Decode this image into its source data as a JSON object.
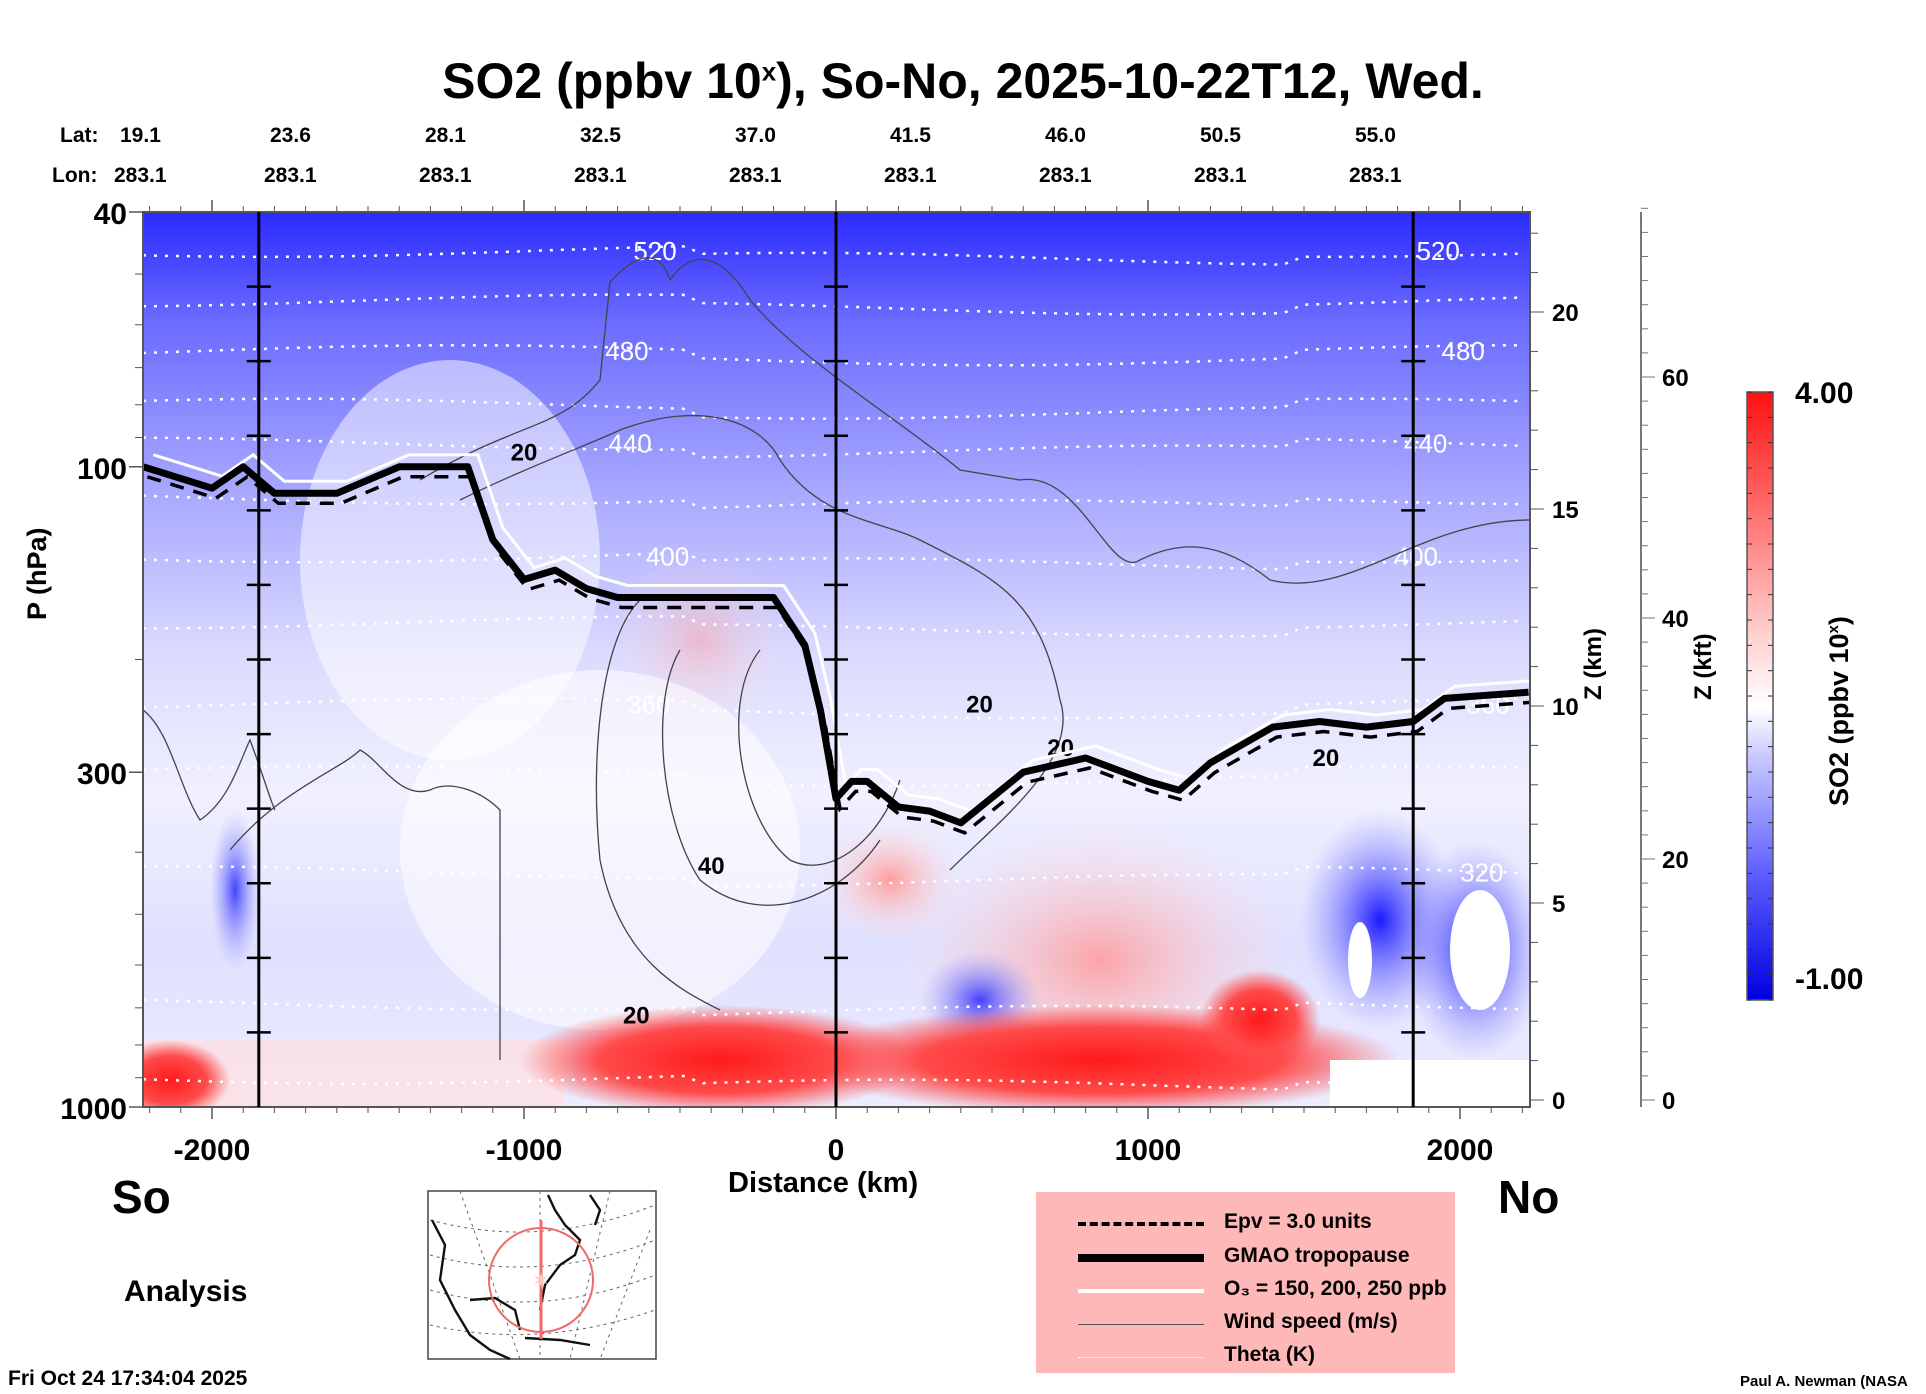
{
  "title": {
    "prefix": "SO2 (ppbv 10",
    "superscript": "x",
    "suffix": "), So-No, 2025-10-22T12, Wed."
  },
  "latlon": {
    "lat_label": "Lat:",
    "lon_label": "Lon:",
    "lats": [
      "19.1",
      "23.6",
      "28.1",
      "32.5",
      "37.0",
      "41.5",
      "46.0",
      "50.5",
      "55.0"
    ],
    "lons": [
      "283.1",
      "283.1",
      "283.1",
      "283.1",
      "283.1",
      "283.1",
      "283.1",
      "283.1",
      "283.1"
    ]
  },
  "labels": {
    "south": "So",
    "north": "No",
    "analysis": "Analysis",
    "timestamp": "Fri Oct 24 17:34:04 2025",
    "credit": "Paul A. Newman (NASA"
  },
  "legend": {
    "items": [
      {
        "style": "dashed",
        "label": "Epv = 3.0 units"
      },
      {
        "style": "thick-solid",
        "label": "GMAO tropopause"
      },
      {
        "style": "white-solid",
        "label": "O₃ = 150, 200, 250 ppb"
      },
      {
        "style": "thin-solid",
        "label": "Wind speed (m/s)"
      },
      {
        "style": "dotted-white",
        "label": "Theta (K)"
      }
    ]
  },
  "colors": {
    "legend_bg": "#ffb8b8",
    "cmap_low": "#0000e6",
    "cmap_mid": "#ffffff",
    "cmap_high": "#ff1010",
    "map_track": "#f06a6a"
  },
  "chart_data": {
    "type": "heatmap",
    "title": "SO2 (ppbv 10^x), So-No, 2025-10-22T12, Wed.",
    "xlabel": "Distance (km)",
    "ylabel": "P (hPa)",
    "y2label": "Z (km)",
    "y3label": "Z (kft)",
    "colorbar_label": "SO2 (ppbv 10^x)",
    "xlim": [
      -2220,
      2220
    ],
    "ylim_hpa": [
      1000,
      40
    ],
    "yscale": "log",
    "x_ticks": [
      -2000,
      -1000,
      0,
      1000,
      2000
    ],
    "x_tick_labels": [
      "-2000",
      "-1000",
      "0",
      "1000",
      "2000"
    ],
    "y_ticks_hpa": [
      40,
      100,
      300,
      1000
    ],
    "y_tick_labels": [
      "40",
      "100",
      "300",
      "1000"
    ],
    "zkm_ticks": [
      0,
      5,
      10,
      15,
      20
    ],
    "zkft_ticks": [
      0,
      20,
      40,
      60
    ],
    "colorbar": {
      "min": -1.0,
      "max": 4.0,
      "min_label": "-1.00",
      "max_label": "4.00"
    },
    "vertical_markers_km": [
      -1850,
      0,
      1850
    ],
    "theta_levels": [
      {
        "value": "520",
        "label_positions_km": [
          -580,
          1930
        ]
      },
      {
        "value": "480",
        "label_positions_km": [
          -670,
          2010
        ]
      },
      {
        "value": "440",
        "label_positions_km": [
          -660,
          1890
        ]
      },
      {
        "value": "400",
        "label_positions_km": [
          -540,
          1860
        ]
      },
      {
        "value": "360",
        "label_positions_km": [
          -600,
          2090
        ]
      },
      {
        "value": "320",
        "label_positions_km": [
          2070
        ]
      }
    ],
    "wind_labels": [
      {
        "value": "20",
        "x_km": -1000,
        "p_hpa": 95
      },
      {
        "value": "40",
        "x_km": -400,
        "p_hpa": 420
      },
      {
        "value": "20",
        "x_km": -640,
        "p_hpa": 720
      },
      {
        "value": "20",
        "x_km": 460,
        "p_hpa": 235
      },
      {
        "value": "20",
        "x_km": 720,
        "p_hpa": 275
      },
      {
        "value": "20",
        "x_km": 1570,
        "p_hpa": 285
      }
    ],
    "tropopause_hpa": {
      "x_km": [
        -2220,
        -2000,
        -1900,
        -1800,
        -1600,
        -1400,
        -1250,
        -1180,
        -1100,
        -1000,
        -900,
        -800,
        -700,
        -400,
        -200,
        -100,
        -50,
        0,
        50,
        100,
        200,
        300,
        400,
        600,
        800,
        1000,
        1100,
        1200,
        1400,
        1550,
        1700,
        1850,
        1950,
        2220
      ],
      "p_hpa": [
        100,
        108,
        100,
        110,
        110,
        100,
        100,
        100,
        130,
        150,
        145,
        155,
        160,
        160,
        160,
        190,
        240,
        330,
        310,
        310,
        340,
        345,
        360,
        300,
        285,
        310,
        320,
        290,
        255,
        250,
        255,
        250,
        230,
        225
      ]
    }
  }
}
